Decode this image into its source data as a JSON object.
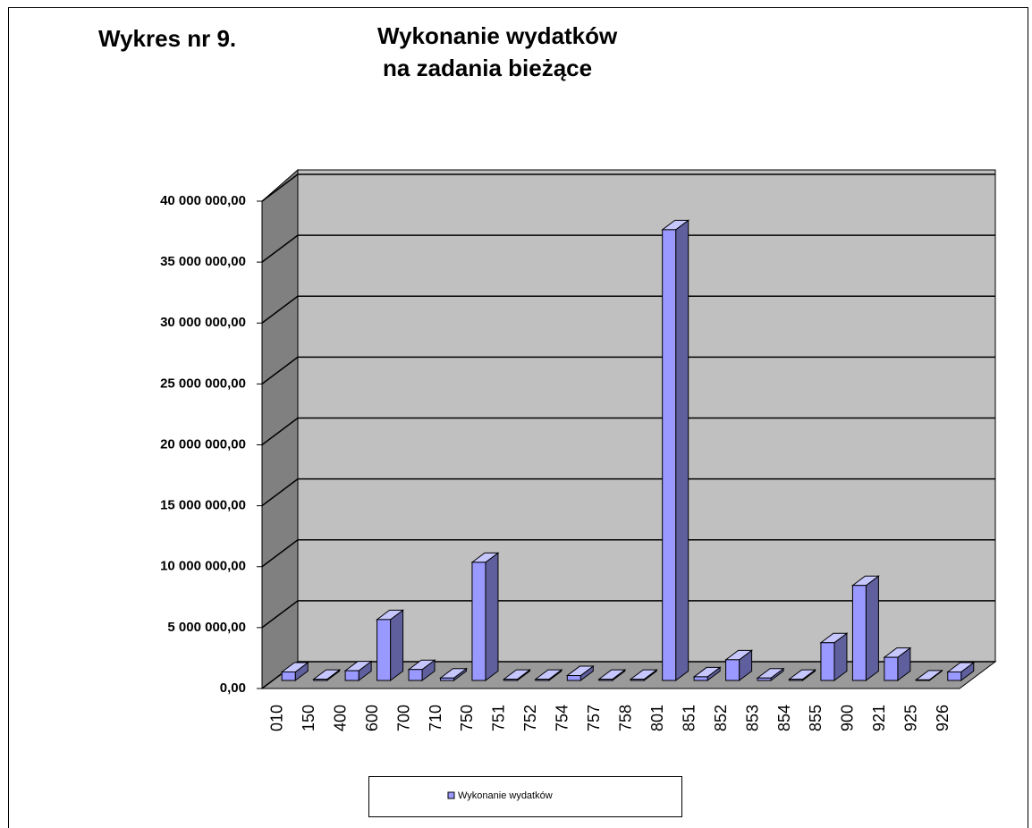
{
  "chart_data": {
    "type": "bar3d",
    "figure_label": "Wykres nr 9.",
    "title": [
      "Wykonanie wydatków",
      "na zadania bieżące"
    ],
    "categories": [
      "010",
      "150",
      "400",
      "600",
      "700",
      "710",
      "750",
      "751",
      "752",
      "754",
      "757",
      "758",
      "801",
      "851",
      "852",
      "853",
      "854",
      "855",
      "900",
      "921",
      "925",
      "926"
    ],
    "series": [
      {
        "name": "Wykonanie wydatków",
        "color": "#9999ff",
        "values": [
          700000,
          100000,
          800000,
          5000000,
          900000,
          200000,
          9700000,
          100000,
          100000,
          400000,
          100000,
          100000,
          37000000,
          300000,
          1700000,
          200000,
          100000,
          3100000,
          7800000,
          1900000,
          50000,
          700000
        ]
      }
    ],
    "ylim": [
      0,
      40000000
    ],
    "yticks": [
      {
        "value": 0,
        "label": "0,00"
      },
      {
        "value": 5000000,
        "label": "5 000 000,00"
      },
      {
        "value": 10000000,
        "label": "10 000 000,00"
      },
      {
        "value": 15000000,
        "label": "15 000 000,00"
      },
      {
        "value": 20000000,
        "label": "20 000 000,00"
      },
      {
        "value": 25000000,
        "label": "25 000 000,00"
      },
      {
        "value": 30000000,
        "label": "30 000 000,00"
      },
      {
        "value": 35000000,
        "label": "35 000 000,00"
      },
      {
        "value": 40000000,
        "label": "40 000 000,00"
      }
    ],
    "grid": true,
    "legend": "bottom"
  }
}
